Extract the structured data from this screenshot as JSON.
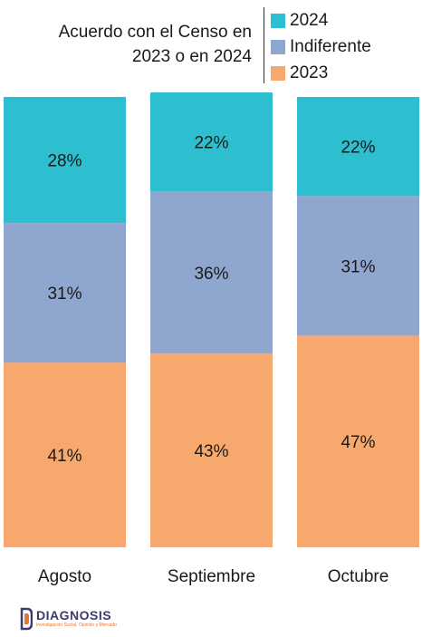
{
  "chart_data": {
    "type": "bar",
    "stacked": true,
    "title_lines": [
      "Acuerdo con el Censo en",
      "2023 o en 2024"
    ],
    "categories": [
      "Agosto",
      "Septiembre",
      "Octubre"
    ],
    "series": [
      {
        "name": "2023",
        "values": [
          41,
          43,
          47
        ],
        "labels": [
          "41%",
          "43%",
          "47%"
        ],
        "color": "#F7A86C"
      },
      {
        "name": "Indiferente",
        "values": [
          31,
          36,
          31
        ],
        "labels": [
          "31%",
          "36%",
          "31%"
        ],
        "color": "#8FA6CF"
      },
      {
        "name": "2024",
        "values": [
          28,
          22,
          22
        ],
        "labels": [
          "28%",
          "22%",
          "22%"
        ],
        "color": "#2DBFCF"
      }
    ],
    "legend_order": [
      "2024",
      "Indiferente",
      "2023"
    ],
    "ylim": [
      0,
      100
    ],
    "grid": false,
    "legend_position": "top-right"
  },
  "logo": {
    "name": "DIAGNOSIS",
    "tagline": "Investigación Social, Opinión y Mercado"
  }
}
